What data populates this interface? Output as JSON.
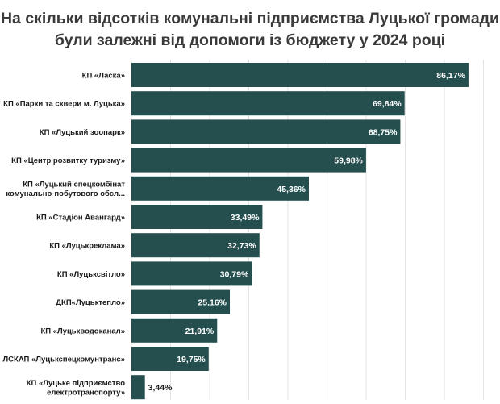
{
  "chart_data": {
    "type": "bar",
    "orientation": "horizontal",
    "title_lines": [
      "На скільки відсотків комунальні підприємства Луцької громади",
      "були залежні від допомоги із бюджету у 2024 році"
    ],
    "categories": [
      [
        "КП «Ласка»"
      ],
      [
        "КП «Парки та сквери м. Луцька»"
      ],
      [
        "КП «Луцький зоопарк»"
      ],
      [
        "КП «Центр розвитку туризму»"
      ],
      [
        "КП «Луцький спецкомбінат",
        "комунально-побутового обсл..."
      ],
      [
        "КП «Стадіон Авангард»"
      ],
      [
        "КП «Луцькреклама»"
      ],
      [
        "КП «Луцьксвітло»"
      ],
      [
        "ДКП«Луцьктепло»"
      ],
      [
        "КП «Луцькводоканал»"
      ],
      [
        "ЛСКАП «Луцькспецкомунтранс»"
      ],
      [
        "КП «Луцьке підприємство",
        "електротранспорту»"
      ]
    ],
    "values": [
      86.17,
      69.84,
      68.75,
      59.98,
      45.36,
      33.49,
      32.73,
      30.79,
      25.16,
      21.91,
      19.75,
      3.44
    ],
    "value_labels": [
      "86,17%",
      "69,84%",
      "68,75%",
      "59,98%",
      "45,36%",
      "33,49%",
      "32,73%",
      "30,79%",
      "25,16%",
      "21,91%",
      "19,75%",
      "3,44%"
    ],
    "xlim": [
      0,
      100
    ],
    "grid": true,
    "colors": {
      "bar": "#254f4f",
      "label_inside": "#ffffff",
      "label_outside": "#1a1a1a",
      "grid": "#e3e3e3",
      "title": "#3a3a3a"
    }
  }
}
